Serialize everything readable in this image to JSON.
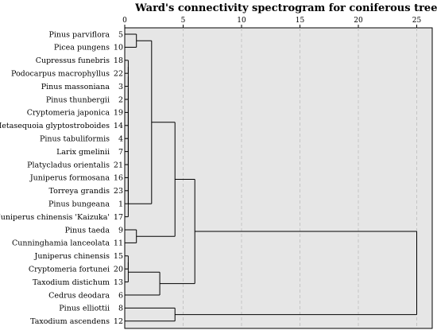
{
  "chart_data": {
    "type": "dendrogram",
    "title": "Ward's connectivity spectrogram for coniferous trees",
    "xlim": [
      0,
      25
    ],
    "x_ticks": [
      0,
      5,
      10,
      15,
      20,
      25
    ],
    "grid": "vertical dashed",
    "leaves": [
      {
        "name": "Pinus parviflora",
        "id": "5"
      },
      {
        "name": "Picea pungens",
        "id": "10"
      },
      {
        "name": "Cupressus funebris",
        "id": "18"
      },
      {
        "name": "Podocarpus macrophyllus",
        "id": "22"
      },
      {
        "name": "Pinus massoniana",
        "id": "3"
      },
      {
        "name": "Pinus thunbergii",
        "id": "2"
      },
      {
        "name": "Cryptomeria japonica",
        "id": "19"
      },
      {
        "name": "Metasequoia glyptostroboides",
        "id": "14"
      },
      {
        "name": "Pinus tabuliformis",
        "id": "4"
      },
      {
        "name": "Larix gmelinii",
        "id": "7"
      },
      {
        "name": "Platycladus orientalis",
        "id": "21"
      },
      {
        "name": "Juniperus formosana",
        "id": "16"
      },
      {
        "name": "Torreya grandis",
        "id": "23"
      },
      {
        "name": "Pinus bungeana",
        "id": "1"
      },
      {
        "name": "Juniperus chinensis 'Kaizuka'",
        "id": "17"
      },
      {
        "name": "Pinus taeda",
        "id": "9"
      },
      {
        "name": "Cunninghamia lanceolata",
        "id": "11"
      },
      {
        "name": "Juniperus chinensis",
        "id": "15"
      },
      {
        "name": "Cryptomeria fortunei",
        "id": "20"
      },
      {
        "name": "Taxodium distichum",
        "id": "13"
      },
      {
        "name": "Cedrus deodara",
        "id": "6"
      },
      {
        "name": "Pinus elliottii",
        "id": "8"
      },
      {
        "name": "Taxodium ascendens",
        "id": "12"
      }
    ],
    "merges": [
      {
        "a": {
          "leaf": 0
        },
        "b": {
          "leaf": 1
        },
        "height": 1.0
      },
      {
        "a": {
          "leaf": 2
        },
        "b": {
          "leaf": 3
        },
        "height": 0.3
      },
      {
        "a": {
          "node": 1
        },
        "b": {
          "leaf": 4
        },
        "height": 0.3
      },
      {
        "a": {
          "node": 2
        },
        "b": {
          "leaf": 5
        },
        "height": 0.3
      },
      {
        "a": {
          "node": 3
        },
        "b": {
          "leaf": 6
        },
        "height": 0.3
      },
      {
        "a": {
          "node": 4
        },
        "b": {
          "leaf": 7
        },
        "height": 0.3
      },
      {
        "a": {
          "node": 5
        },
        "b": {
          "leaf": 8
        },
        "height": 0.3
      },
      {
        "a": {
          "node": 6
        },
        "b": {
          "leaf": 9
        },
        "height": 0.3
      },
      {
        "a": {
          "node": 7
        },
        "b": {
          "leaf": 10
        },
        "height": 0.3
      },
      {
        "a": {
          "node": 8
        },
        "b": {
          "leaf": 11
        },
        "height": 0.3
      },
      {
        "a": {
          "node": 9
        },
        "b": {
          "leaf": 12
        },
        "height": 0.3
      },
      {
        "a": {
          "node": 10
        },
        "b": {
          "leaf": 13
        },
        "height": 0.3
      },
      {
        "a": {
          "node": 11
        },
        "b": {
          "leaf": 14
        },
        "height": 0.3
      },
      {
        "a": {
          "node": 0
        },
        "b": {
          "node": 12
        },
        "height": 2.3
      },
      {
        "a": {
          "leaf": 15
        },
        "b": {
          "leaf": 16
        },
        "height": 1.0
      },
      {
        "a": {
          "node": 13
        },
        "b": {
          "node": 14
        },
        "height": 4.3
      },
      {
        "a": {
          "leaf": 17
        },
        "b": {
          "leaf": 18
        },
        "height": 0.3
      },
      {
        "a": {
          "node": 16
        },
        "b": {
          "leaf": 19
        },
        "height": 0.3
      },
      {
        "a": {
          "node": 17
        },
        "b": {
          "leaf": 20
        },
        "height": 3.0
      },
      {
        "a": {
          "node": 15
        },
        "b": {
          "node": 18
        },
        "height": 6.0
      },
      {
        "a": {
          "leaf": 21
        },
        "b": {
          "leaf": 22
        },
        "height": 4.3
      },
      {
        "a": {
          "node": 19
        },
        "b": {
          "node": 20
        },
        "height": 25.0
      }
    ]
  }
}
